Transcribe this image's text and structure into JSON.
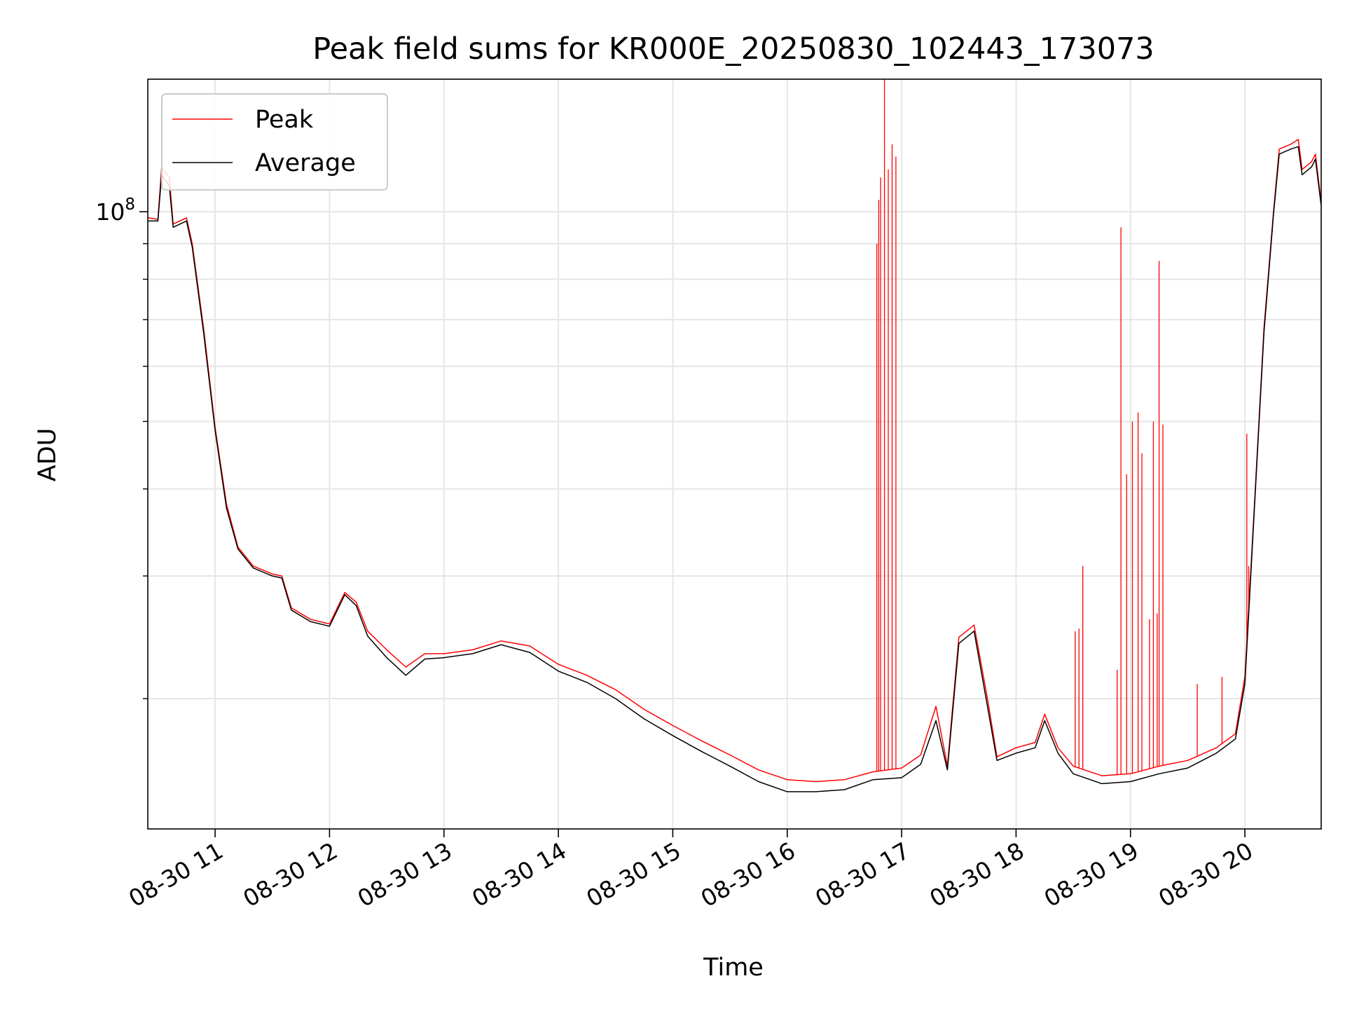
{
  "chart_data": {
    "type": "line",
    "title": "Peak field sums for KR000E_20250830_102443_173073",
    "xlabel": "Time",
    "ylabel": "ADU",
    "y_scale": "log",
    "ylim": [
      13000000,
      155000000
    ],
    "xlim": [
      "2025-08-30 10:24:43",
      "2025-08-30 20:40:00"
    ],
    "x_ticks": [
      {
        "t": "2025-08-30 11:00",
        "label": "08-30 11"
      },
      {
        "t": "2025-08-30 12:00",
        "label": "08-30 12"
      },
      {
        "t": "2025-08-30 13:00",
        "label": "08-30 13"
      },
      {
        "t": "2025-08-30 14:00",
        "label": "08-30 14"
      },
      {
        "t": "2025-08-30 15:00",
        "label": "08-30 15"
      },
      {
        "t": "2025-08-30 16:00",
        "label": "08-30 16"
      },
      {
        "t": "2025-08-30 17:00",
        "label": "08-30 17"
      },
      {
        "t": "2025-08-30 18:00",
        "label": "08-30 18"
      },
      {
        "t": "2025-08-30 19:00",
        "label": "08-30 19"
      },
      {
        "t": "2025-08-30 20:00",
        "label": "08-30 20"
      }
    ],
    "y_major_ticks": [
      {
        "value": 100000000,
        "base": "10",
        "exp": "8"
      }
    ],
    "y_minor_ticks": [
      20000000,
      30000000,
      40000000,
      50000000,
      60000000,
      70000000,
      80000000,
      90000000
    ],
    "grid": true,
    "legend": {
      "position": "upper-left"
    },
    "series": [
      {
        "name": "Peak",
        "color": "#ff0000",
        "points": [
          [
            "2025-08-30 10:25",
            98000000
          ],
          [
            "2025-08-30 10:30",
            97500000
          ],
          [
            "2025-08-30 10:32",
            116000000
          ],
          [
            "2025-08-30 10:36",
            112000000
          ],
          [
            "2025-08-30 10:38",
            96000000
          ],
          [
            "2025-08-30 10:45",
            98000000
          ],
          [
            "2025-08-30 10:48",
            90000000
          ],
          [
            "2025-08-30 10:54",
            68000000
          ],
          [
            "2025-08-30 11:00",
            49000000
          ],
          [
            "2025-08-30 11:06",
            38000000
          ],
          [
            "2025-08-30 11:12",
            33000000
          ],
          [
            "2025-08-30 11:20",
            31000000
          ],
          [
            "2025-08-30 11:30",
            30200000
          ],
          [
            "2025-08-30 11:35",
            30000000
          ],
          [
            "2025-08-30 11:40",
            27000000
          ],
          [
            "2025-08-30 11:50",
            26000000
          ],
          [
            "2025-08-30 12:00",
            25600000
          ],
          [
            "2025-08-30 12:08",
            28400000
          ],
          [
            "2025-08-30 12:14",
            27500000
          ],
          [
            "2025-08-30 12:20",
            25000000
          ],
          [
            "2025-08-30 12:30",
            23500000
          ],
          [
            "2025-08-30 12:40",
            22200000
          ],
          [
            "2025-08-30 12:50",
            23200000
          ],
          [
            "2025-08-30 13:00",
            23200000
          ],
          [
            "2025-08-30 13:15",
            23500000
          ],
          [
            "2025-08-30 13:30",
            24200000
          ],
          [
            "2025-08-30 13:45",
            23800000
          ],
          [
            "2025-08-30 14:00",
            22400000
          ],
          [
            "2025-08-30 14:15",
            21600000
          ],
          [
            "2025-08-30 14:30",
            20600000
          ],
          [
            "2025-08-30 14:45",
            19300000
          ],
          [
            "2025-08-30 15:00",
            18300000
          ],
          [
            "2025-08-30 15:15",
            17400000
          ],
          [
            "2025-08-30 15:30",
            16600000
          ],
          [
            "2025-08-30 15:45",
            15800000
          ],
          [
            "2025-08-30 16:00",
            15300000
          ],
          [
            "2025-08-30 16:15",
            15200000
          ],
          [
            "2025-08-30 16:30",
            15300000
          ],
          [
            "2025-08-30 16:45",
            15700000
          ],
          [
            "2025-08-30 17:00",
            15900000
          ],
          [
            "2025-08-30 17:10",
            16600000
          ],
          [
            "2025-08-30 17:18",
            19500000
          ],
          [
            "2025-08-30 17:24",
            16000000
          ],
          [
            "2025-08-30 17:30",
            24500000
          ],
          [
            "2025-08-30 17:38",
            25500000
          ],
          [
            "2025-08-30 17:45",
            20000000
          ],
          [
            "2025-08-30 17:50",
            16500000
          ],
          [
            "2025-08-30 18:00",
            17000000
          ],
          [
            "2025-08-30 18:10",
            17300000
          ],
          [
            "2025-08-30 18:15",
            19000000
          ],
          [
            "2025-08-30 18:22",
            17000000
          ],
          [
            "2025-08-30 18:30",
            16000000
          ],
          [
            "2025-08-30 18:45",
            15500000
          ],
          [
            "2025-08-30 19:00",
            15600000
          ],
          [
            "2025-08-30 19:15",
            16000000
          ],
          [
            "2025-08-30 19:30",
            16300000
          ],
          [
            "2025-08-30 19:45",
            17000000
          ],
          [
            "2025-08-30 19:55",
            17800000
          ],
          [
            "2025-08-30 20:00",
            21500000
          ],
          [
            "2025-08-30 20:05",
            38000000
          ],
          [
            "2025-08-30 20:10",
            68000000
          ],
          [
            "2025-08-30 20:15",
            100000000
          ],
          [
            "2025-08-30 20:18",
            123000000
          ],
          [
            "2025-08-30 20:24",
            125000000
          ],
          [
            "2025-08-30 20:28",
            127000000
          ],
          [
            "2025-08-30 20:30",
            115000000
          ],
          [
            "2025-08-30 20:35",
            118000000
          ],
          [
            "2025-08-30 20:37",
            121000000
          ],
          [
            "2025-08-30 20:40",
            103000000
          ]
        ],
        "spikes": [
          [
            "2025-08-30 16:47",
            90000000
          ],
          [
            "2025-08-30 16:48",
            104000000
          ],
          [
            "2025-08-30 16:49",
            112000000
          ],
          [
            "2025-08-30 16:51",
            155000000
          ],
          [
            "2025-08-30 16:53",
            115000000
          ],
          [
            "2025-08-30 16:55",
            125000000
          ],
          [
            "2025-08-30 16:57",
            120000000
          ],
          [
            "2025-08-30 18:31",
            25000000
          ],
          [
            "2025-08-30 18:33",
            25200000
          ],
          [
            "2025-08-30 18:35",
            31000000
          ],
          [
            "2025-08-30 18:53",
            22000000
          ],
          [
            "2025-08-30 18:55",
            95000000
          ],
          [
            "2025-08-30 18:58",
            42000000
          ],
          [
            "2025-08-30 19:01",
            50000000
          ],
          [
            "2025-08-30 19:04",
            51500000
          ],
          [
            "2025-08-30 19:06",
            45000000
          ],
          [
            "2025-08-30 19:10",
            26000000
          ],
          [
            "2025-08-30 19:12",
            50000000
          ],
          [
            "2025-08-30 19:14",
            26500000
          ],
          [
            "2025-08-30 19:15",
            85000000
          ],
          [
            "2025-08-30 19:17",
            49500000
          ],
          [
            "2025-08-30 19:35",
            21000000
          ],
          [
            "2025-08-30 19:48",
            21500000
          ],
          [
            "2025-08-30 20:01",
            48000000
          ],
          [
            "2025-08-30 20:02",
            31000000
          ]
        ]
      },
      {
        "name": "Average",
        "color": "#000000",
        "points": [
          [
            "2025-08-30 10:25",
            97000000
          ],
          [
            "2025-08-30 10:30",
            97000000
          ],
          [
            "2025-08-30 10:32",
            113000000
          ],
          [
            "2025-08-30 10:36",
            109000000
          ],
          [
            "2025-08-30 10:38",
            95000000
          ],
          [
            "2025-08-30 10:45",
            97000000
          ],
          [
            "2025-08-30 10:48",
            89000000
          ],
          [
            "2025-08-30 10:54",
            67000000
          ],
          [
            "2025-08-30 11:00",
            48500000
          ],
          [
            "2025-08-30 11:06",
            37500000
          ],
          [
            "2025-08-30 11:12",
            32800000
          ],
          [
            "2025-08-30 11:20",
            30800000
          ],
          [
            "2025-08-30 11:30",
            30000000
          ],
          [
            "2025-08-30 11:35",
            29800000
          ],
          [
            "2025-08-30 11:40",
            26800000
          ],
          [
            "2025-08-30 11:50",
            25800000
          ],
          [
            "2025-08-30 12:00",
            25400000
          ],
          [
            "2025-08-30 12:08",
            28200000
          ],
          [
            "2025-08-30 12:14",
            27200000
          ],
          [
            "2025-08-30 12:20",
            24600000
          ],
          [
            "2025-08-30 12:30",
            22900000
          ],
          [
            "2025-08-30 12:40",
            21600000
          ],
          [
            "2025-08-30 12:50",
            22800000
          ],
          [
            "2025-08-30 13:00",
            22900000
          ],
          [
            "2025-08-30 13:15",
            23200000
          ],
          [
            "2025-08-30 13:30",
            23900000
          ],
          [
            "2025-08-30 13:45",
            23300000
          ],
          [
            "2025-08-30 14:00",
            21900000
          ],
          [
            "2025-08-30 14:15",
            21100000
          ],
          [
            "2025-08-30 14:30",
            20000000
          ],
          [
            "2025-08-30 14:45",
            18700000
          ],
          [
            "2025-08-30 15:00",
            17700000
          ],
          [
            "2025-08-30 15:15",
            16800000
          ],
          [
            "2025-08-30 15:30",
            16000000
          ],
          [
            "2025-08-30 15:45",
            15200000
          ],
          [
            "2025-08-30 16:00",
            14700000
          ],
          [
            "2025-08-30 16:15",
            14700000
          ],
          [
            "2025-08-30 16:30",
            14800000
          ],
          [
            "2025-08-30 16:45",
            15300000
          ],
          [
            "2025-08-30 17:00",
            15400000
          ],
          [
            "2025-08-30 17:10",
            16100000
          ],
          [
            "2025-08-30 17:18",
            18600000
          ],
          [
            "2025-08-30 17:24",
            15800000
          ],
          [
            "2025-08-30 17:30",
            24000000
          ],
          [
            "2025-08-30 17:38",
            25000000
          ],
          [
            "2025-08-30 17:45",
            19500000
          ],
          [
            "2025-08-30 17:50",
            16300000
          ],
          [
            "2025-08-30 18:00",
            16700000
          ],
          [
            "2025-08-30 18:10",
            17000000
          ],
          [
            "2025-08-30 18:15",
            18600000
          ],
          [
            "2025-08-30 18:22",
            16700000
          ],
          [
            "2025-08-30 18:30",
            15600000
          ],
          [
            "2025-08-30 18:45",
            15100000
          ],
          [
            "2025-08-30 19:00",
            15200000
          ],
          [
            "2025-08-30 19:15",
            15600000
          ],
          [
            "2025-08-30 19:30",
            15900000
          ],
          [
            "2025-08-30 19:45",
            16700000
          ],
          [
            "2025-08-30 19:55",
            17500000
          ],
          [
            "2025-08-30 20:00",
            21000000
          ],
          [
            "2025-08-30 20:05",
            37500000
          ],
          [
            "2025-08-30 20:10",
            67000000
          ],
          [
            "2025-08-30 20:15",
            99000000
          ],
          [
            "2025-08-30 20:18",
            121000000
          ],
          [
            "2025-08-30 20:24",
            123000000
          ],
          [
            "2025-08-30 20:28",
            124000000
          ],
          [
            "2025-08-30 20:30",
            113000000
          ],
          [
            "2025-08-30 20:35",
            116000000
          ],
          [
            "2025-08-30 20:37",
            119000000
          ],
          [
            "2025-08-30 20:40",
            102000000
          ]
        ]
      }
    ]
  }
}
